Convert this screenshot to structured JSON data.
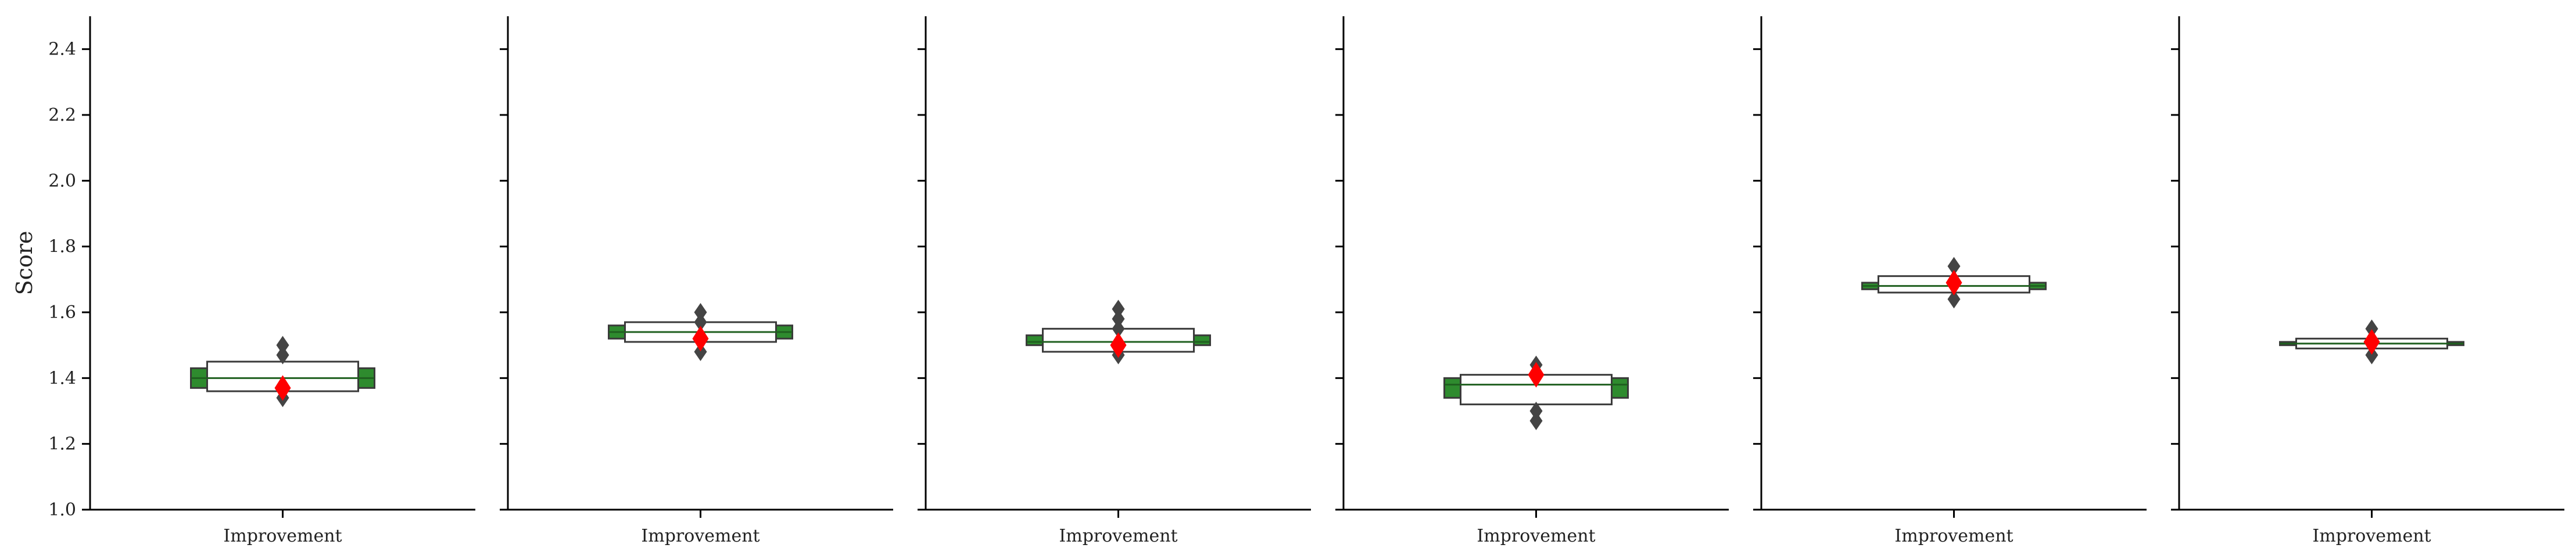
{
  "chart_data": {
    "type": "boxen",
    "ylabel": "Score",
    "ylim": [
      1.0,
      2.5
    ],
    "yticks": [
      1.0,
      1.2,
      1.4,
      1.6,
      1.8,
      2.0,
      2.2,
      2.4
    ],
    "ytick_labels": [
      "1.0",
      "1.2",
      "1.4",
      "1.6",
      "1.8",
      "2.0",
      "2.2",
      "2.4"
    ],
    "colors": {
      "box": "#2e8b2e",
      "edge": "#3a3a3a",
      "inner_box": "#ffffff",
      "mean_marker": "#ff0000",
      "outlier": "#444444"
    },
    "panels": [
      {
        "category": "Improvement",
        "boxes": [
          {
            "low": 1.37,
            "high": 1.43,
            "color": "green"
          },
          {
            "low": 1.36,
            "high": 1.45,
            "color": "white"
          }
        ],
        "median": 1.4,
        "mean": 1.37,
        "outliers": [
          1.5,
          1.47,
          1.34
        ]
      },
      {
        "category": "Improvement",
        "boxes": [
          {
            "low": 1.52,
            "high": 1.56,
            "color": "green"
          },
          {
            "low": 1.51,
            "high": 1.57,
            "color": "white"
          }
        ],
        "median": 1.54,
        "mean": 1.52,
        "outliers": [
          1.6,
          1.57,
          1.48
        ]
      },
      {
        "category": "Improvement",
        "boxes": [
          {
            "low": 1.5,
            "high": 1.53,
            "color": "green"
          },
          {
            "low": 1.48,
            "high": 1.55,
            "color": "white"
          }
        ],
        "median": 1.51,
        "mean": 1.5,
        "outliers": [
          1.61,
          1.58,
          1.55,
          1.47
        ]
      },
      {
        "category": "Improvement",
        "boxes": [
          {
            "low": 1.34,
            "high": 1.4,
            "color": "green"
          },
          {
            "low": 1.32,
            "high": 1.41,
            "color": "white"
          }
        ],
        "median": 1.38,
        "mean": 1.41,
        "outliers": [
          1.44,
          1.3,
          1.27
        ]
      },
      {
        "category": "Improvement",
        "boxes": [
          {
            "low": 1.67,
            "high": 1.69,
            "color": "green"
          },
          {
            "low": 1.66,
            "high": 1.71,
            "color": "white"
          }
        ],
        "median": 1.68,
        "mean": 1.69,
        "outliers": [
          1.74,
          1.64
        ]
      },
      {
        "category": "Improvement",
        "boxes": [
          {
            "low": 1.5,
            "high": 1.51,
            "color": "green"
          },
          {
            "low": 1.49,
            "high": 1.52,
            "color": "white"
          }
        ],
        "median": 1.505,
        "mean": 1.51,
        "outliers": [
          1.55,
          1.47
        ]
      }
    ]
  }
}
